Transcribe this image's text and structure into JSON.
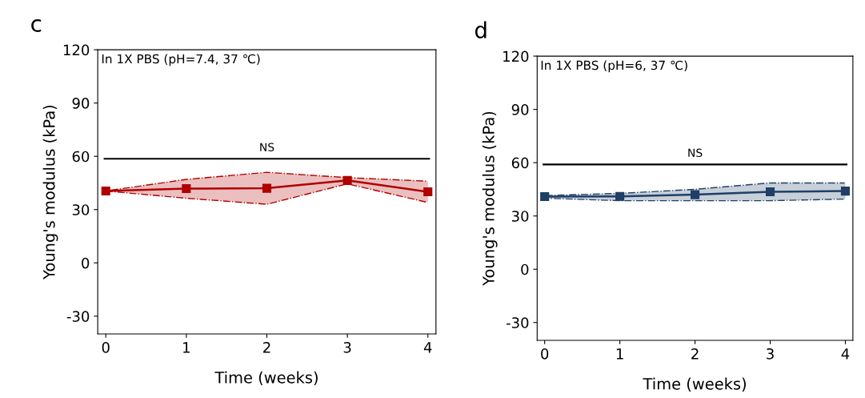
{
  "chart_data": [
    {
      "type": "line",
      "title": "c",
      "xlabel": "Time (weeks)",
      "ylabel": "Young's modulus (kPa)",
      "x": [
        0,
        1,
        2,
        3,
        4
      ],
      "series": [
        {
          "color": "#b00000",
          "values": [
            40.5,
            41.8,
            42,
            46.4,
            40
          ],
          "lower": [
            40.5,
            36.4,
            33,
            44.5,
            34
          ],
          "upper": [
            40.5,
            47,
            51,
            48,
            46
          ]
        }
      ],
      "xlim": [
        -0.1,
        4.1
      ],
      "ylim": [
        -40,
        120
      ],
      "xticks": [
        0,
        1,
        2,
        3,
        4
      ],
      "yticks": [
        -30,
        0,
        30,
        60,
        90,
        120
      ],
      "marker": "square",
      "line_style": "solid",
      "grid": false,
      "legend": false,
      "ref_lines": [
        {
          "axis": "y",
          "value": 58.6,
          "label": "NS",
          "color": "#000000"
        }
      ],
      "annotations": [
        "In 1X PBS (pH=7.4, 37 ℃)"
      ]
    },
    {
      "type": "line",
      "title": "d",
      "xlabel": "Time (weeks)",
      "ylabel": "Young's modulus (kPa)",
      "x": [
        0,
        1,
        2,
        3,
        4
      ],
      "series": [
        {
          "color": "#1f3f66",
          "values": [
            40.9,
            41,
            42,
            43.6,
            44
          ],
          "lower": [
            40,
            38.6,
            38.6,
            38.6,
            39.5
          ],
          "upper": [
            41.5,
            42.7,
            45,
            48.6,
            48.6
          ]
        }
      ],
      "xlim": [
        -0.1,
        4.1
      ],
      "ylim": [
        -40,
        120
      ],
      "xticks": [
        0,
        1,
        2,
        3,
        4
      ],
      "yticks": [
        -30,
        0,
        30,
        60,
        90,
        120
      ],
      "marker": "square",
      "line_style": "solid",
      "grid": false,
      "legend": false,
      "ref_lines": [
        {
          "axis": "y",
          "value": 59,
          "label": "NS",
          "color": "#000000"
        }
      ],
      "annotations": [
        "In 1X PBS (pH=6, 37 ℃)"
      ]
    }
  ]
}
